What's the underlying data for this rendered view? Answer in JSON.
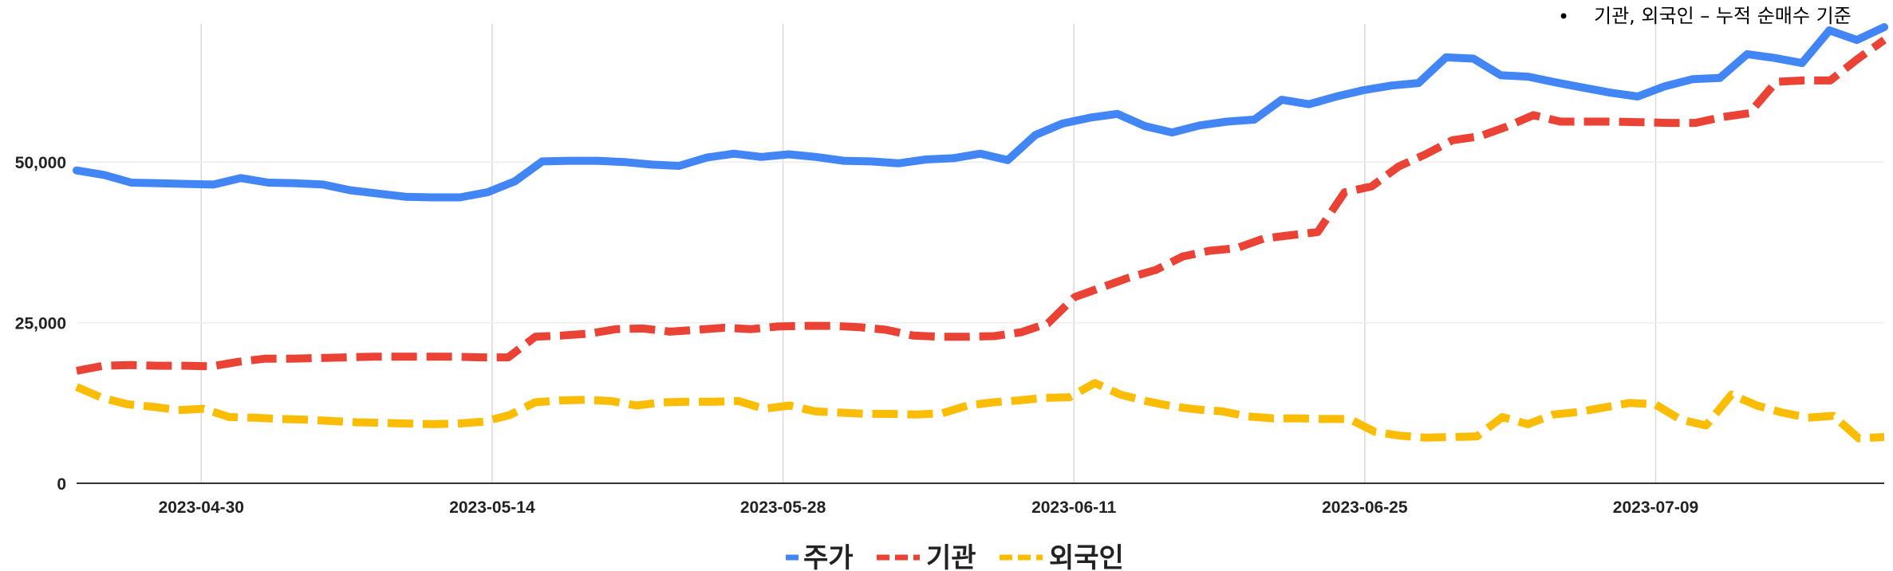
{
  "note": {
    "bullet": "•",
    "text": "기관, 외국인 – 누적 순매수 기준"
  },
  "chart_data": {
    "type": "line",
    "x": [
      "2023-04-24",
      "2023-04-25",
      "2023-04-26",
      "2023-04-27",
      "2023-04-28",
      "2023-05-02",
      "2023-05-03",
      "2023-05-04",
      "2023-05-08",
      "2023-05-09",
      "2023-05-10",
      "2023-05-11",
      "2023-05-12",
      "2023-05-15",
      "2023-05-16",
      "2023-05-17",
      "2023-05-18",
      "2023-05-19",
      "2023-05-22",
      "2023-05-23",
      "2023-05-24",
      "2023-05-25",
      "2023-05-26",
      "2023-05-30",
      "2023-05-31",
      "2023-06-01",
      "2023-06-02",
      "2023-06-05",
      "2023-06-07",
      "2023-06-08",
      "2023-06-09",
      "2023-06-12",
      "2023-06-13",
      "2023-06-14",
      "2023-06-15",
      "2023-06-16",
      "2023-06-19",
      "2023-06-20",
      "2023-06-21",
      "2023-06-22",
      "2023-06-23",
      "2023-06-26",
      "2023-06-27",
      "2023-06-28",
      "2023-06-29",
      "2023-06-30",
      "2023-07-03",
      "2023-07-04",
      "2023-07-05",
      "2023-07-06",
      "2023-07-07",
      "2023-07-10",
      "2023-07-11",
      "2023-07-12",
      "2023-07-13",
      "2023-07-14",
      "2023-07-17",
      "2023-07-18",
      "2023-07-19",
      "2023-07-20"
    ],
    "xlim": [
      "2023-04-24",
      "2023-07-20"
    ],
    "x_tick_labels": [
      "2023-04-30",
      "2023-05-14",
      "2023-05-28",
      "2023-06-11",
      "2023-06-25",
      "2023-07-09"
    ],
    "y_tick_labels": [
      "0",
      "25,000",
      "50,000"
    ],
    "ylim": [
      0,
      71500
    ],
    "grid": true,
    "series": [
      {
        "name": "주가",
        "color": "#4285f4",
        "style": "solid",
        "values": [
          48700,
          48000,
          46800,
          46700,
          46600,
          46500,
          47500,
          46800,
          46700,
          46500,
          45600,
          45100,
          44600,
          44500,
          44500,
          45300,
          47000,
          50100,
          50200,
          50200,
          50000,
          49600,
          49400,
          50700,
          51300,
          50800,
          51200,
          50800,
          50200,
          50100,
          49800,
          50400,
          50600,
          51300,
          50300,
          54200,
          56000,
          56900,
          57500,
          55600,
          54600,
          55700,
          56300,
          56600,
          59700,
          59000,
          60200,
          61200,
          61900,
          62300,
          66300,
          66100,
          63500,
          63300,
          62400,
          61600,
          60800,
          60200,
          61800,
          62900
        ],
        "values_tail": [
          63100,
          66800,
          66200,
          65400,
          70500,
          69000,
          71000
        ]
      },
      {
        "name": "기관",
        "color": "#ea4335",
        "style": "dashed",
        "values": [
          17500,
          18300,
          18400,
          18300,
          18300,
          18200,
          18900,
          19400,
          19400,
          19500,
          19600,
          19700,
          19700,
          19700,
          19700,
          19600,
          19600,
          22800,
          23000,
          23300,
          24000,
          24100,
          23600,
          23900,
          24200,
          24000,
          24400,
          24500,
          24500,
          24300,
          23900,
          23000,
          22800,
          22800,
          22900,
          23500,
          24900,
          29000,
          30500,
          32000,
          33200,
          35300,
          36200,
          36600,
          38100,
          38600,
          39100,
          45300,
          46200,
          49300,
          51200,
          53400,
          54000,
          55500,
          57300,
          56300,
          56300,
          56300,
          56200,
          56100
        ],
        "values_tail": [
          56100,
          57000,
          57600,
          62500,
          62700,
          62700,
          66000,
          69000
        ]
      },
      {
        "name": "외국인",
        "color": "#fbbc04",
        "style": "dashed",
        "values": [
          15000,
          13300,
          12300,
          11900,
          11400,
          11600,
          10300,
          10200,
          10000,
          9900,
          9700,
          9500,
          9400,
          9300,
          9200,
          9300,
          9600,
          10600,
          12600,
          12900,
          13000,
          12800,
          12100,
          12600,
          12700,
          12700,
          12800,
          11600,
          12100,
          11200,
          11000,
          10800,
          10800,
          10700,
          10900,
          12100,
          12600,
          12900,
          13300,
          13400,
          15600,
          13800,
          12800,
          12000,
          11500,
          11200,
          10400,
          10100,
          10100,
          10000,
          10000,
          8000,
          7400,
          7100,
          7200,
          7300,
          10300,
          9200,
          10700,
          11100
        ],
        "values_tail": [
          11800,
          12500,
          12300,
          9900,
          9000,
          13800,
          12100,
          11000,
          10200,
          10500,
          7000,
          7200
        ]
      }
    ]
  }
}
